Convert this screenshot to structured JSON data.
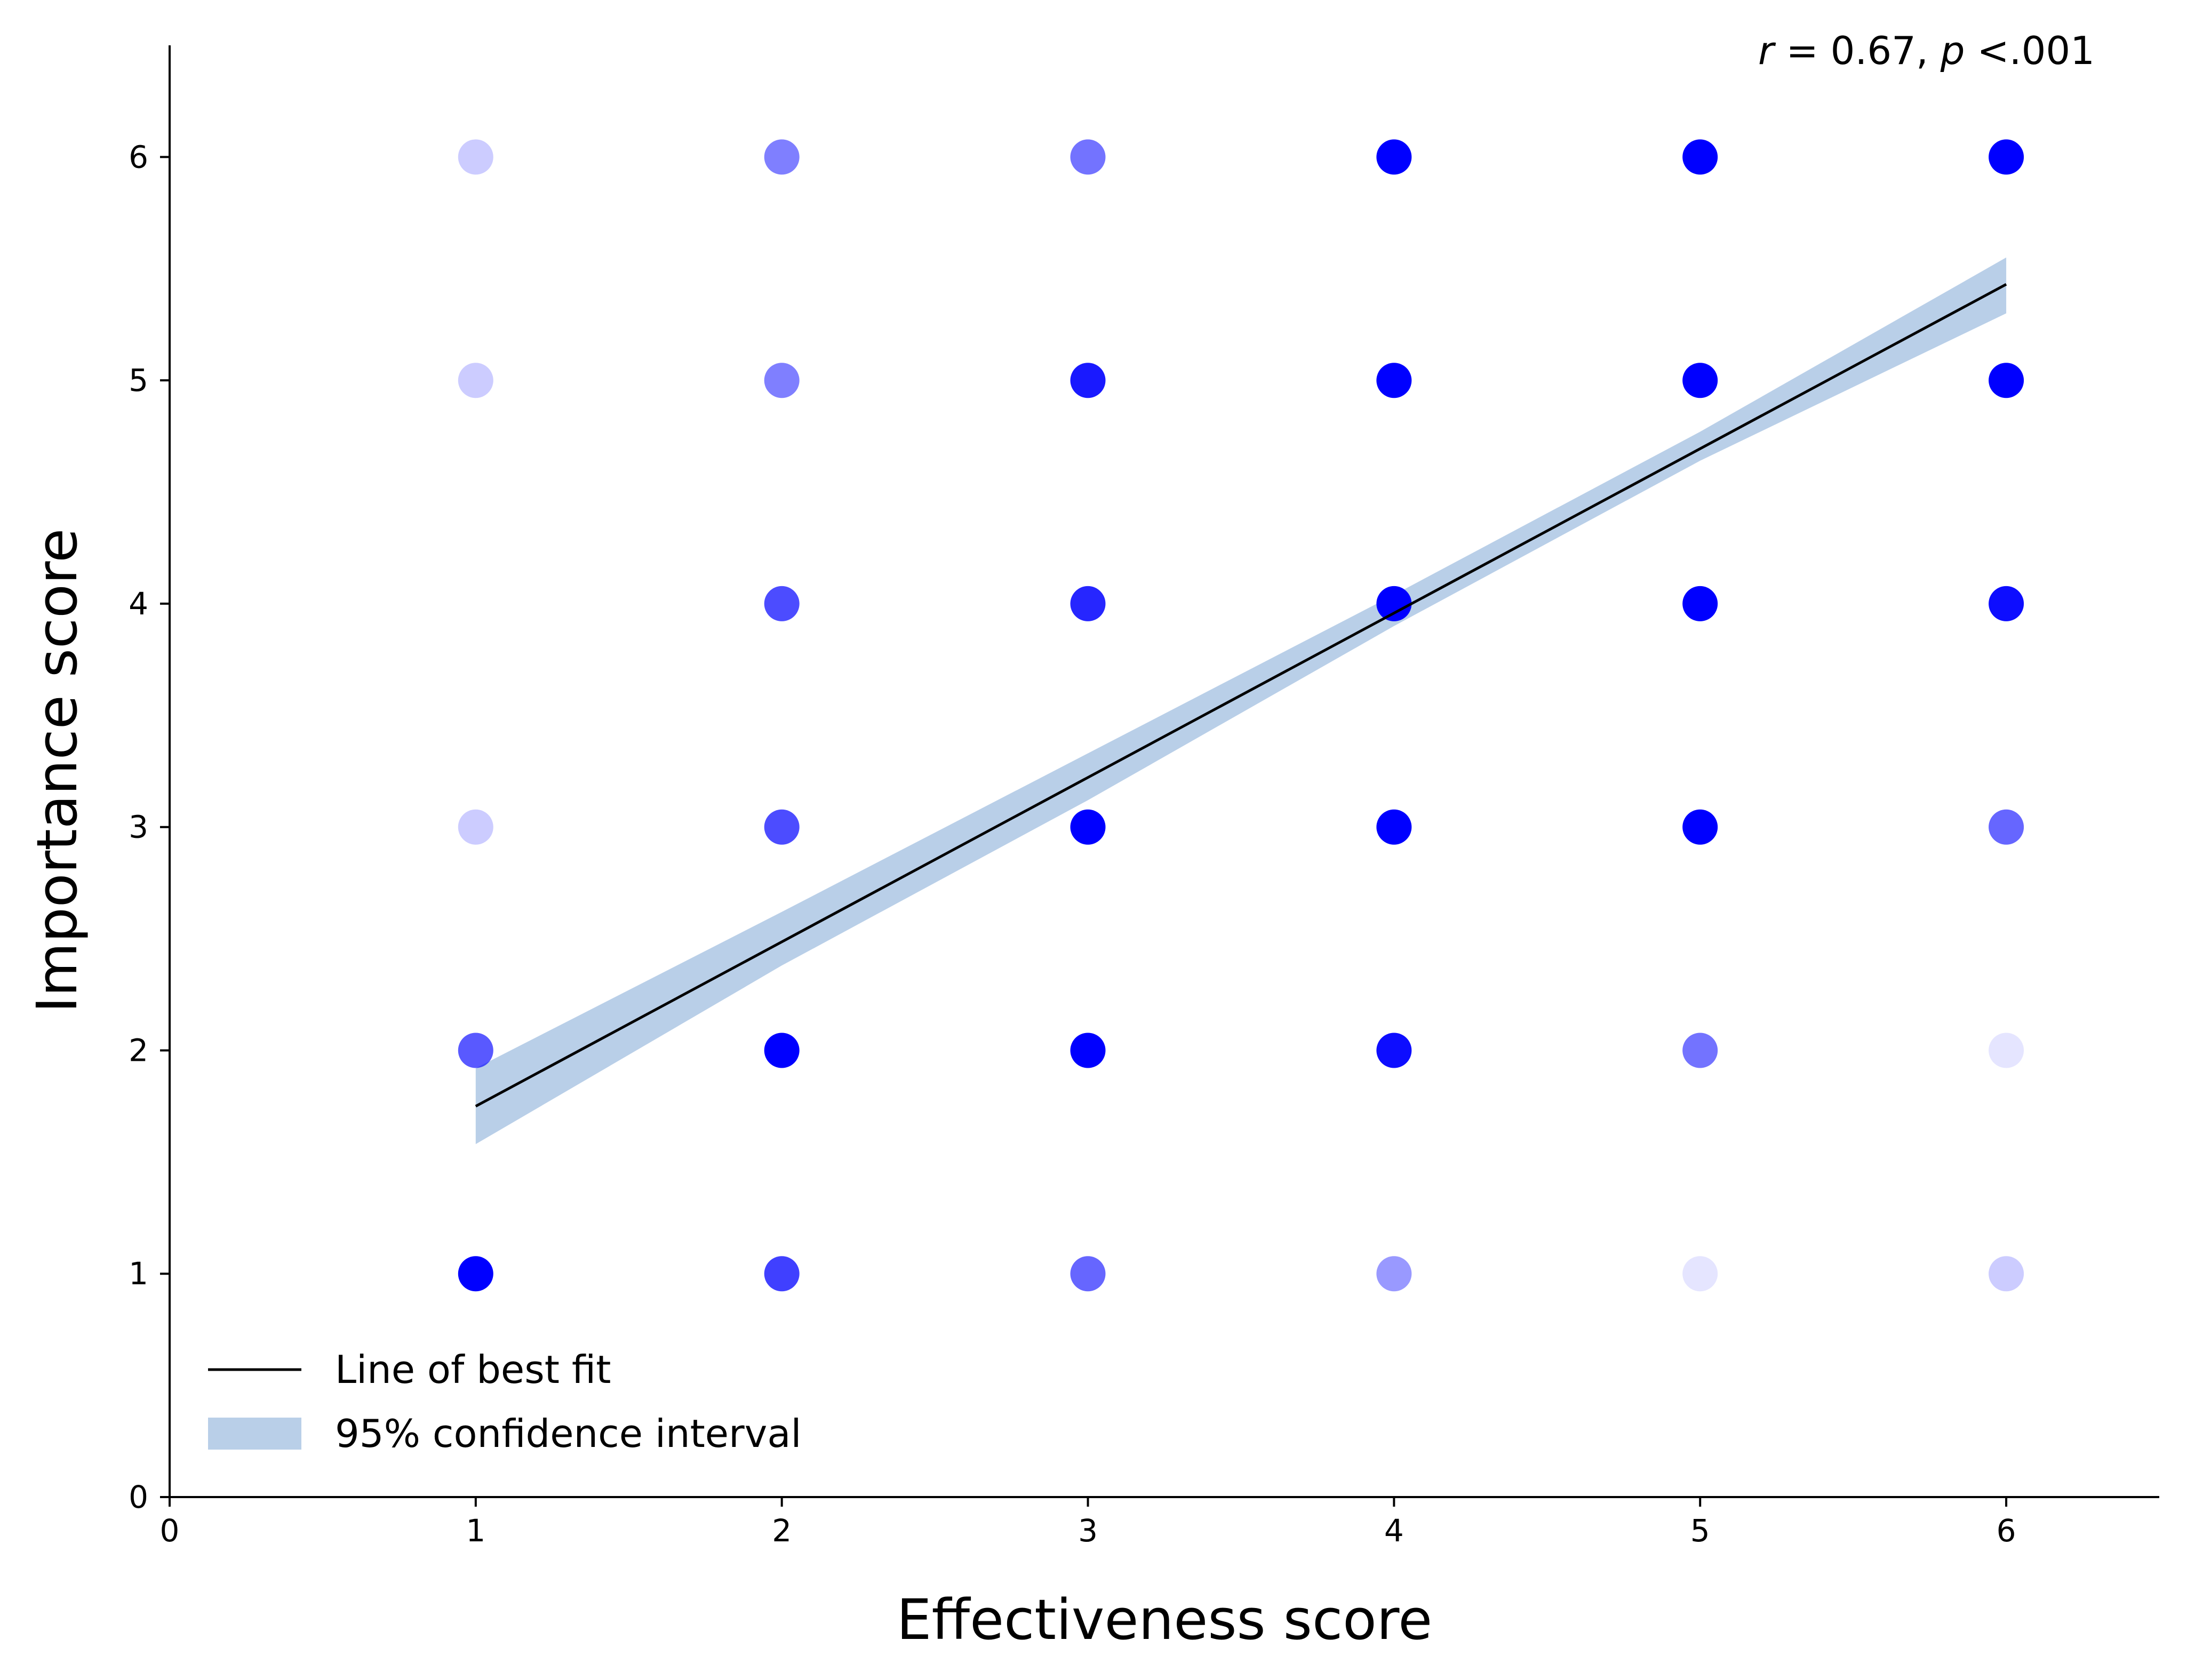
{
  "chart_data": {
    "type": "scatter",
    "xlabel": "Effectiveness score",
    "ylabel": "Importance score",
    "xlim": [
      0,
      6.5
    ],
    "ylim": [
      0,
      6.5
    ],
    "x_ticks": [
      0,
      1,
      2,
      3,
      4,
      5,
      6
    ],
    "y_ticks": [
      0,
      1,
      2,
      3,
      4,
      5,
      6
    ],
    "grid": false,
    "legend_position": "bottom-left",
    "annotation": {
      "r_symbol": "r",
      "r_text": " = 0.67, ",
      "p_symbol": "p",
      "p_text": " <.001"
    },
    "marker_color": "#0000ff",
    "points": [
      {
        "x": 1,
        "y": 6,
        "opacity": 0.2
      },
      {
        "x": 1,
        "y": 5,
        "opacity": 0.2
      },
      {
        "x": 1,
        "y": 3,
        "opacity": 0.2
      },
      {
        "x": 1,
        "y": 2,
        "opacity": 0.65
      },
      {
        "x": 1,
        "y": 1,
        "opacity": 1.0
      },
      {
        "x": 2,
        "y": 6,
        "opacity": 0.5
      },
      {
        "x": 2,
        "y": 5,
        "opacity": 0.5
      },
      {
        "x": 2,
        "y": 4,
        "opacity": 0.7
      },
      {
        "x": 2,
        "y": 3,
        "opacity": 0.7
      },
      {
        "x": 2,
        "y": 2,
        "opacity": 1.0
      },
      {
        "x": 2,
        "y": 1,
        "opacity": 0.75
      },
      {
        "x": 3,
        "y": 6,
        "opacity": 0.55
      },
      {
        "x": 3,
        "y": 5,
        "opacity": 0.9
      },
      {
        "x": 3,
        "y": 4,
        "opacity": 0.85
      },
      {
        "x": 3,
        "y": 3,
        "opacity": 1.0
      },
      {
        "x": 3,
        "y": 2,
        "opacity": 1.0
      },
      {
        "x": 3,
        "y": 1,
        "opacity": 0.6
      },
      {
        "x": 4,
        "y": 6,
        "opacity": 1.0
      },
      {
        "x": 4,
        "y": 5,
        "opacity": 1.0
      },
      {
        "x": 4,
        "y": 4,
        "opacity": 1.0
      },
      {
        "x": 4,
        "y": 3,
        "opacity": 1.0
      },
      {
        "x": 4,
        "y": 2,
        "opacity": 0.95
      },
      {
        "x": 4,
        "y": 1,
        "opacity": 0.4
      },
      {
        "x": 5,
        "y": 6,
        "opacity": 1.0
      },
      {
        "x": 5,
        "y": 5,
        "opacity": 1.0
      },
      {
        "x": 5,
        "y": 4,
        "opacity": 1.0
      },
      {
        "x": 5,
        "y": 3,
        "opacity": 1.0
      },
      {
        "x": 5,
        "y": 2,
        "opacity": 0.55
      },
      {
        "x": 5,
        "y": 1,
        "opacity": 0.1
      },
      {
        "x": 6,
        "y": 6,
        "opacity": 1.0
      },
      {
        "x": 6,
        "y": 5,
        "opacity": 1.0
      },
      {
        "x": 6,
        "y": 4,
        "opacity": 0.95
      },
      {
        "x": 6,
        "y": 3,
        "opacity": 0.6
      },
      {
        "x": 6,
        "y": 2,
        "opacity": 0.1
      },
      {
        "x": 6,
        "y": 1,
        "opacity": 0.2
      }
    ],
    "fit_line": {
      "legend_label": "Line of best fit",
      "color": "#000000",
      "x": [
        1,
        6
      ],
      "y": [
        1.75,
        5.43
      ]
    },
    "confidence_band": {
      "legend_label": "95% confidence interval",
      "color": "#b9cfe8",
      "x": [
        1,
        2,
        3,
        4,
        5,
        6
      ],
      "upper": [
        1.92,
        2.62,
        3.33,
        4.04,
        4.77,
        5.55
      ],
      "lower": [
        1.58,
        2.38,
        3.12,
        3.9,
        4.64,
        5.3
      ]
    }
  }
}
